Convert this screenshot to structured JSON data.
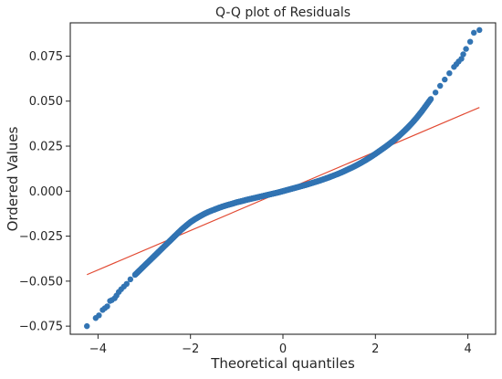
{
  "chart_data": {
    "type": "scatter",
    "title": "Q-Q plot of Residuals",
    "xlabel": "Theoretical quantiles",
    "ylabel": "Ordered Values",
    "xlim": [
      -4.6,
      4.6
    ],
    "ylim": [
      -0.0795,
      0.0935
    ],
    "xticks": [
      -4,
      -2,
      0,
      2,
      4
    ],
    "xtick_labels": [
      "−4",
      "−2",
      "0",
      "2",
      "4"
    ],
    "yticks": [
      -0.075,
      -0.05,
      -0.025,
      0.0,
      0.025,
      0.05,
      0.075
    ],
    "ytick_labels": [
      "−0.075",
      "−0.050",
      "−0.025",
      "0.000",
      "0.025",
      "0.050",
      "0.075"
    ],
    "grid": false,
    "legend": "none",
    "colors": {
      "points": "#3274b3",
      "fit_line": "#e24a33",
      "axes": "#262626"
    },
    "series": [
      {
        "x": [
          -4.24,
          -4.05,
          -3.98,
          -3.9,
          -3.85,
          -3.8,
          -3.74,
          -3.7,
          -3.64,
          -3.6,
          -3.55,
          -3.5,
          -3.44,
          -3.38,
          -3.3,
          -3.2,
          -3.1,
          -3.0,
          -2.9,
          -2.8,
          -2.7,
          -2.6,
          -2.5,
          -2.4,
          -2.3,
          -2.2,
          -2.1,
          -2.0,
          -1.9,
          -1.8,
          -1.7,
          -1.6,
          -1.5,
          -1.4,
          -1.3,
          -1.2,
          -1.1,
          -1.0,
          -0.9,
          -0.8,
          -0.7,
          -0.6,
          -0.5,
          -0.4,
          -0.3,
          -0.2,
          -0.1,
          0.0,
          0.1,
          0.2,
          0.3,
          0.4,
          0.5,
          0.6,
          0.7,
          0.8,
          0.9,
          1.0,
          1.1,
          1.2,
          1.3,
          1.4,
          1.5,
          1.6,
          1.7,
          1.8,
          1.9,
          2.0,
          2.1,
          2.2,
          2.3,
          2.4,
          2.5,
          2.6,
          2.7,
          2.8,
          2.9,
          3.0,
          3.1,
          3.2,
          3.3,
          3.4,
          3.5,
          3.6,
          3.7,
          3.75,
          3.8,
          3.86,
          3.9,
          3.96,
          4.05,
          4.13,
          4.25
        ],
        "y": [
          -0.075,
          -0.0705,
          -0.069,
          -0.066,
          -0.065,
          -0.064,
          -0.061,
          -0.0605,
          -0.0595,
          -0.058,
          -0.056,
          -0.0545,
          -0.053,
          -0.0515,
          -0.049,
          -0.0465,
          -0.044,
          -0.0415,
          -0.039,
          -0.0365,
          -0.034,
          -0.0315,
          -0.029,
          -0.0265,
          -0.024,
          -0.0215,
          -0.0193,
          -0.0172,
          -0.0155,
          -0.014,
          -0.0126,
          -0.0114,
          -0.0104,
          -0.0094,
          -0.0085,
          -0.0077,
          -0.007,
          -0.0062,
          -0.0056,
          -0.0049,
          -0.0043,
          -0.0037,
          -0.0031,
          -0.0025,
          -0.0019,
          -0.0013,
          -0.0007,
          0.0,
          0.0007,
          0.0014,
          0.0021,
          0.0028,
          0.0035,
          0.0043,
          0.0051,
          0.0059,
          0.0068,
          0.0077,
          0.0087,
          0.0097,
          0.0108,
          0.012,
          0.0132,
          0.0145,
          0.0159,
          0.0174,
          0.019,
          0.0207,
          0.0225,
          0.0243,
          0.0262,
          0.0282,
          0.0304,
          0.0328,
          0.0353,
          0.038,
          0.041,
          0.0442,
          0.0477,
          0.0512,
          0.0548,
          0.0585,
          0.062,
          0.0655,
          0.069,
          0.0705,
          0.072,
          0.0735,
          0.076,
          0.079,
          0.083,
          0.088,
          0.0895
        ]
      }
    ],
    "fit_line": {
      "x": [
        -4.24,
        4.25
      ],
      "y": [
        -0.0464,
        0.0465
      ]
    }
  }
}
